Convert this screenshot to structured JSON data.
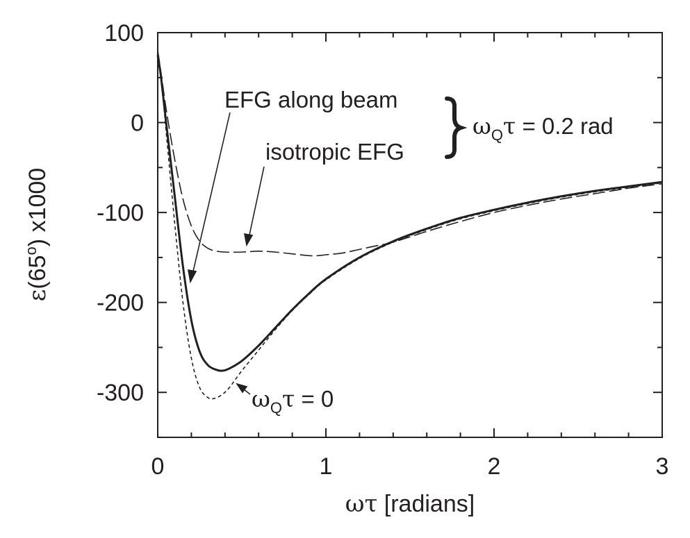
{
  "chart_data": {
    "type": "line",
    "xlabel_symbol": "ωτ",
    "xlabel_text": " [radians]",
    "ylabel_symbol": "ε",
    "ylabel_text_a": "(65",
    "ylabel_sup": "o",
    "ylabel_text_b": ") x1000",
    "xlim": [
      0,
      3
    ],
    "ylim": [
      -350,
      100
    ],
    "x_ticks": [
      0,
      1,
      2,
      3
    ],
    "y_ticks": [
      100,
      0,
      -100,
      -200,
      -300
    ],
    "x_tick_labels": [
      "0",
      "1",
      "2",
      "3"
    ],
    "y_tick_labels": [
      "100",
      "0",
      "-100",
      "-200",
      "-300"
    ],
    "x_minor_step": 0.2,
    "y_minor_step": 50,
    "grid": false,
    "legend": "none",
    "series": [
      {
        "style": "solid",
        "x": [
          0,
          0.02,
          0.05,
          0.1,
          0.15,
          0.2,
          0.25,
          0.3,
          0.35,
          0.38,
          0.42,
          0.5,
          0.6,
          0.7,
          0.8,
          0.9,
          1.0,
          1.2,
          1.4,
          1.6,
          1.8,
          2.0,
          2.2,
          2.4,
          2.6,
          2.8,
          3.0
        ],
        "y": [
          75,
          50,
          0,
          -80,
          -160,
          -220,
          -255,
          -270,
          -275,
          -276,
          -274,
          -265,
          -248,
          -228,
          -208,
          -190,
          -174,
          -150,
          -132,
          -118,
          -106,
          -97,
          -89,
          -82,
          -76,
          -71,
          -66
        ]
      },
      {
        "style": "dashed-short",
        "x": [
          0,
          0.02,
          0.05,
          0.1,
          0.15,
          0.2,
          0.25,
          0.3,
          0.33,
          0.37,
          0.42,
          0.5,
          0.6,
          0.7,
          0.8,
          0.9,
          1.0,
          1.2,
          1.4,
          1.6,
          1.8,
          2.0,
          2.2,
          2.4,
          2.6,
          2.8,
          3.0
        ],
        "y": [
          78,
          50,
          -10,
          -110,
          -200,
          -262,
          -295,
          -306,
          -307,
          -304,
          -296,
          -276,
          -253,
          -230,
          -209,
          -191,
          -175,
          -151,
          -133,
          -119,
          -107,
          -98,
          -90,
          -83,
          -77,
          -72,
          -67
        ]
      },
      {
        "style": "dashed-long",
        "x": [
          0,
          0.02,
          0.05,
          0.1,
          0.15,
          0.2,
          0.25,
          0.3,
          0.35,
          0.4,
          0.5,
          0.6,
          0.7,
          0.8,
          0.9,
          0.95,
          1.0,
          1.1,
          1.2,
          1.3,
          1.4,
          1.6,
          1.8,
          2.0,
          2.2,
          2.4,
          2.6,
          2.8,
          3.0
        ],
        "y": [
          80,
          55,
          15,
          -40,
          -85,
          -115,
          -132,
          -140,
          -143,
          -144,
          -144,
          -143,
          -144,
          -146,
          -148,
          -148,
          -147,
          -145,
          -141,
          -137,
          -133,
          -121,
          -110,
          -100,
          -92,
          -85,
          -79,
          -73,
          -68
        ]
      }
    ],
    "annotations": {
      "efg_beam": "EFG along beam",
      "isotropic": "isotropic EFG",
      "bracket_omega": "ω",
      "bracket_sub": "Q",
      "bracket_tau": "τ",
      "bracket_value": " = 0.2 rad",
      "zero_omega": "ω",
      "zero_sub": "Q",
      "zero_tau": "τ",
      "zero_value": " = 0"
    }
  }
}
